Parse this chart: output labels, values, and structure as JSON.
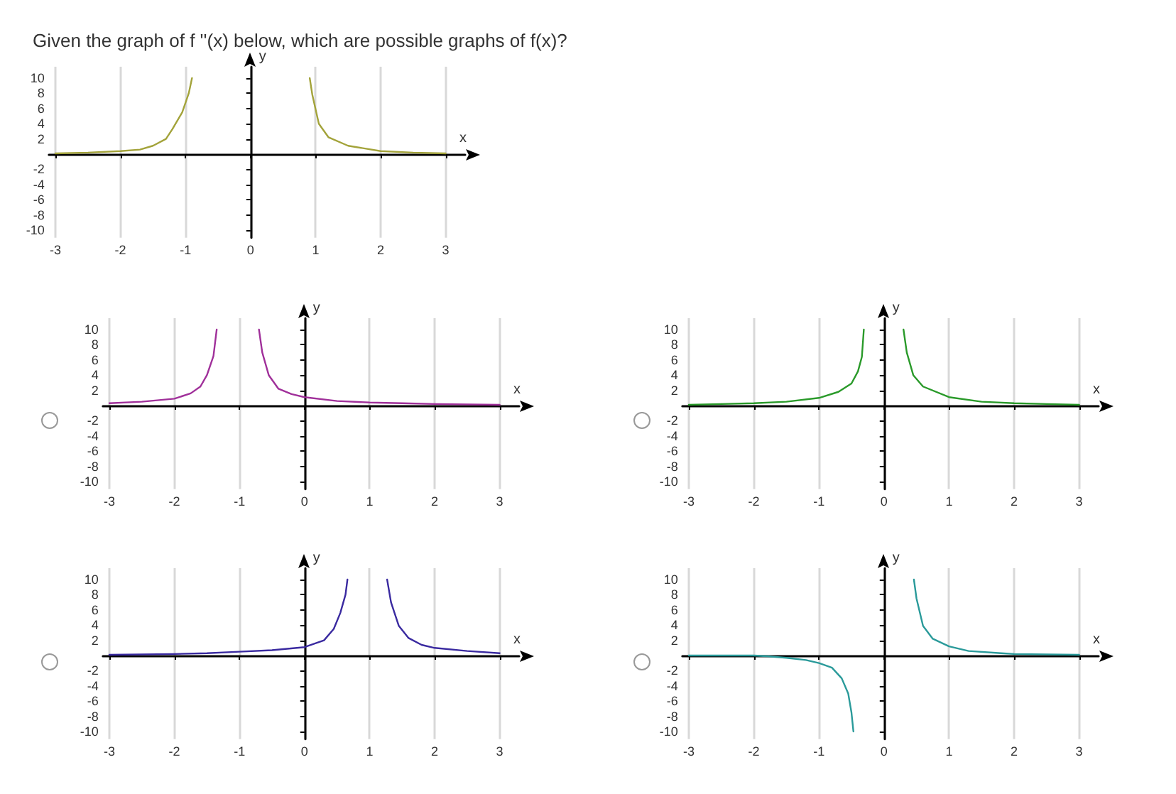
{
  "chart_data": [
    {
      "type": "line",
      "title": "Given the graph of f ''(x) below, which are possible graphs of f(x)?",
      "xlabel": "x",
      "ylabel": "y",
      "xlim": [
        -3.1,
        3.3
      ],
      "ylim": [
        -11,
        11.5
      ],
      "xticks": [
        -3,
        -2,
        -1,
        0,
        1,
        2,
        3
      ],
      "yticks": [
        -10,
        -8,
        -6,
        -4,
        -2,
        2,
        4,
        6,
        8,
        10
      ],
      "grid": "x",
      "marker": "none",
      "line_style": "solid",
      "series": [
        {
          "color": "#a3a33a",
          "x": [
            -3,
            -2.5,
            -2,
            -1.7,
            -1.5,
            -1.3,
            -1.2,
            -1.05,
            -0.95,
            -0.9
          ],
          "values": [
            0.1,
            0.2,
            0.4,
            0.6,
            1.1,
            2,
            3.3,
            5.5,
            8,
            10
          ]
        },
        {
          "color": "#a3a33a",
          "x": [
            0.91,
            0.95,
            1.05,
            1.2,
            1.5,
            2,
            2.5,
            3
          ],
          "values": [
            10,
            7.8,
            4,
            2.2,
            1.1,
            0.4,
            0.2,
            0.1
          ]
        }
      ]
    },
    {
      "type": "line",
      "xlabel": "x",
      "ylabel": "y",
      "xlim": [
        -3.1,
        3.3
      ],
      "ylim": [
        -11,
        11.5
      ],
      "xticks": [
        -3,
        -2,
        -1,
        0,
        1,
        2,
        3
      ],
      "yticks": [
        -10,
        -8,
        -6,
        -4,
        -2,
        2,
        4,
        6,
        8,
        10
      ],
      "grid": "x",
      "marker": "none",
      "line_style": "solid",
      "series": [
        {
          "color": "#a0309a",
          "x": [
            -3,
            -2.5,
            -2,
            -1.75,
            -1.6,
            -1.5,
            -1.4,
            -1.35
          ],
          "values": [
            0.3,
            0.5,
            0.9,
            1.6,
            2.5,
            4,
            6.5,
            10
          ]
        },
        {
          "color": "#a0309a",
          "x": [
            -0.7,
            -0.65,
            -0.55,
            -0.4,
            -0.2,
            0,
            0.5,
            1,
            1.5,
            2,
            3
          ],
          "values": [
            10,
            7,
            4,
            2.2,
            1.5,
            1.1,
            0.6,
            0.4,
            0.3,
            0.2,
            0.1
          ]
        }
      ]
    },
    {
      "type": "line",
      "xlabel": "x",
      "ylabel": "y",
      "xlim": [
        -3.1,
        3.3
      ],
      "ylim": [
        -11,
        11.5
      ],
      "xticks": [
        -3,
        -2,
        -1,
        0,
        1,
        2,
        3
      ],
      "yticks": [
        -10,
        -8,
        -6,
        -4,
        -2,
        2,
        4,
        6,
        8,
        10
      ],
      "grid": "x",
      "marker": "none",
      "line_style": "solid",
      "series": [
        {
          "color": "#2a9a2a",
          "x": [
            -3,
            -2.5,
            -2,
            -1.5,
            -1,
            -0.7,
            -0.5,
            -0.4,
            -0.34,
            -0.31
          ],
          "values": [
            0.1,
            0.2,
            0.3,
            0.5,
            1,
            1.8,
            2.9,
            4.5,
            6.4,
            10
          ]
        },
        {
          "color": "#2a9a2a",
          "x": [
            0.3,
            0.35,
            0.45,
            0.6,
            1,
            1.5,
            2,
            2.5,
            3
          ],
          "values": [
            10,
            7,
            4,
            2.5,
            1.1,
            0.5,
            0.3,
            0.2,
            0.1
          ]
        }
      ]
    },
    {
      "type": "line",
      "xlabel": "x",
      "ylabel": "y",
      "xlim": [
        -3.1,
        3.3
      ],
      "ylim": [
        -11,
        11.5
      ],
      "xticks": [
        -3,
        -2,
        -1,
        0,
        1,
        2,
        3
      ],
      "yticks": [
        -10,
        -8,
        -6,
        -4,
        -2,
        2,
        4,
        6,
        8,
        10
      ],
      "grid": "x",
      "marker": "none",
      "line_style": "solid",
      "series": [
        {
          "color": "#3a2aa0",
          "x": [
            -3,
            -2,
            -1.5,
            -1,
            -0.5,
            0,
            0.3,
            0.45,
            0.55,
            0.63,
            0.66
          ],
          "values": [
            0.1,
            0.2,
            0.3,
            0.5,
            0.7,
            1.1,
            2,
            3.5,
            5.6,
            8,
            10
          ]
        },
        {
          "color": "#3a2aa0",
          "x": [
            1.27,
            1.33,
            1.45,
            1.6,
            1.8,
            2,
            2.5,
            3
          ],
          "values": [
            10,
            7,
            3.9,
            2.3,
            1.4,
            1,
            0.6,
            0.3
          ]
        }
      ]
    },
    {
      "type": "line",
      "xlabel": "x",
      "ylabel": "y",
      "xlim": [
        -3.1,
        3.3
      ],
      "ylim": [
        -11,
        11.5
      ],
      "xticks": [
        -3,
        -2,
        -1,
        0,
        1,
        2,
        3
      ],
      "yticks": [
        -10,
        -8,
        -6,
        -4,
        -2,
        2,
        4,
        6,
        8,
        10
      ],
      "grid": "x",
      "marker": "none",
      "line_style": "solid",
      "series": [
        {
          "color": "#2a9a9a",
          "x": [
            -3,
            -2,
            -1.8,
            -1.5,
            -1.2,
            -1,
            -0.8,
            -0.65,
            -0.55,
            -0.5,
            -0.47
          ],
          "values": [
            0,
            0,
            -0.1,
            -0.3,
            -0.6,
            -1,
            -1.6,
            -3,
            -5,
            -7.5,
            -10
          ]
        },
        {
          "color": "#2a9a9a",
          "x": [
            0.46,
            0.5,
            0.6,
            0.75,
            1,
            1.3,
            1.8,
            2,
            3
          ],
          "values": [
            10,
            7.5,
            3.9,
            2.2,
            1.2,
            0.6,
            0.3,
            0.2,
            0.1
          ]
        }
      ]
    }
  ]
}
